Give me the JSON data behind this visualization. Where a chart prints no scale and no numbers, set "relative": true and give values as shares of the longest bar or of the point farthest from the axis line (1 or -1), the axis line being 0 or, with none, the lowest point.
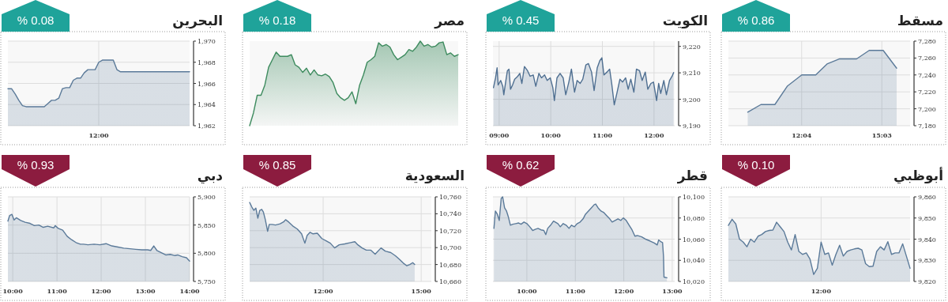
{
  "chart_data": [
    {
      "type": "area",
      "title": "مسقط",
      "annotations": [
        "% 0.86"
      ],
      "x": [
        10.06,
        10.55,
        11.07,
        11.54,
        12.07,
        12.59,
        13.01,
        13.48,
        14.11,
        14.58,
        15.1,
        15.6
      ],
      "series": [
        {
          "color": "#5b7a99",
          "values": [
            7196,
            7205,
            7205,
            7227,
            7240,
            7240,
            7253,
            7259,
            7259,
            7269,
            7269,
            7248
          ]
        }
      ],
      "xlim": [
        9.34,
        16.1
      ],
      "ylim": [
        7180,
        7280
      ],
      "xticks": [
        {
          "value": 12.0667,
          "label": "12:04"
        },
        {
          "value": 15.05,
          "label": "15:03"
        }
      ],
      "yticks": [
        {
          "value": 7180,
          "label": "7,180"
        },
        {
          "value": 7200,
          "label": "7,200"
        },
        {
          "value": 7220,
          "label": "7,220"
        },
        {
          "value": 7240,
          "label": "7,240"
        },
        {
          "value": 7260,
          "label": "7,260"
        },
        {
          "value": 7280,
          "label": "7,280"
        }
      ],
      "grid": true
    },
    {
      "type": "area",
      "title": "الكويت",
      "annotations": [
        "% 0.45"
      ],
      "x": [
        8.89,
        8.93,
        8.96,
        8.98,
        9.03,
        9.07,
        9.09,
        9.13,
        9.16,
        9.19,
        9.22,
        9.26,
        9.3,
        9.36,
        9.4,
        9.44,
        9.49,
        9.55,
        9.6,
        9.66,
        9.71,
        9.77,
        9.82,
        9.88,
        9.93,
        9.99,
        10.04,
        10.07,
        10.12,
        10.18,
        10.24,
        10.29,
        10.35,
        10.4,
        10.46,
        10.51,
        10.57,
        10.62,
        10.68,
        10.73,
        10.79,
        10.84,
        10.9,
        10.95,
        10.99,
        11.03,
        11.09,
        11.14,
        11.18,
        11.23,
        11.28,
        11.34,
        11.39,
        11.45,
        11.5,
        11.55,
        11.61,
        11.66,
        11.72,
        11.77,
        11.83,
        11.88,
        11.94,
        11.99,
        12.05,
        12.09,
        12.13,
        12.19,
        12.24,
        12.3,
        12.35,
        12.38
      ],
      "series": [
        {
          "color": "#4f6f91",
          "values": [
            9204.4,
            9208.1,
            9211.9,
            9205.4,
            9207.1,
            9204.9,
            9201.7,
            9207.1,
            9210.8,
            9211.4,
            9203.8,
            9205.4,
            9207.6,
            9208.7,
            9209.8,
            9206.0,
            9212.4,
            9210.8,
            9208.7,
            9209.2,
            9204.9,
            9209.8,
            9208.1,
            9209.2,
            9207.1,
            9208.1,
            9204.4,
            9199.5,
            9208.1,
            9209.8,
            9208.1,
            9201.7,
            9206.5,
            9211.4,
            9202.7,
            9207.1,
            9206.0,
            9207.6,
            9213.0,
            9213.5,
            9210.3,
            9203.3,
            9211.9,
            9214.6,
            9215.7,
            9209.2,
            9210.3,
            9211.4,
            9206.0,
            9197.9,
            9202.2,
            9207.6,
            9206.5,
            9208.1,
            9203.8,
            9207.6,
            9202.7,
            9211.4,
            9210.8,
            9207.1,
            9210.3,
            9203.8,
            9206.0,
            9206.5,
            9199.5,
            9206.0,
            9202.2,
            9207.1,
            9201.7,
            9207.1,
            9208.7,
            9210.1
          ]
        }
      ],
      "xlim": [
        8.88,
        12.4
      ],
      "ylim": [
        9190,
        9222
      ],
      "xticks": [
        {
          "value": 9,
          "label": "09:00"
        },
        {
          "value": 10,
          "label": "10:00"
        },
        {
          "value": 11,
          "label": "11:00"
        },
        {
          "value": 12,
          "label": "12:00"
        }
      ],
      "yticks": [
        {
          "value": 9190,
          "label": "9,190"
        },
        {
          "value": 9200,
          "label": "9,200"
        },
        {
          "value": 9210,
          "label": "9,210"
        },
        {
          "value": 9220,
          "label": "9,220"
        }
      ],
      "grid": true
    },
    {
      "type": "area",
      "title": "مصر",
      "annotations": [
        "% 0.18"
      ],
      "relative": true,
      "categories": [
        null,
        null,
        null,
        null,
        null,
        null,
        null,
        null,
        null,
        null,
        null,
        null,
        null,
        null,
        null,
        null,
        null,
        null,
        null,
        null,
        null,
        null,
        null,
        null,
        null,
        null,
        null,
        null,
        null,
        null,
        null,
        null,
        null,
        null,
        null,
        null,
        null,
        null,
        null,
        null,
        null,
        null,
        null,
        null,
        null,
        null,
        null,
        null,
        null,
        null,
        null,
        null,
        null,
        null,
        null,
        null
      ],
      "series": [
        {
          "color": "#3d8b5e",
          "values": [
            0,
            0.15,
            0.36,
            0.36,
            0.48,
            0.69,
            0.78,
            0.87,
            0.82,
            0.82,
            0.82,
            0.84,
            0.72,
            0.69,
            0.63,
            0.68,
            0.6,
            0.66,
            0.6,
            0.59,
            0.61,
            0.58,
            0.51,
            0.38,
            0.33,
            0.3,
            0.33,
            0.4,
            0.26,
            0.48,
            0.6,
            0.75,
            0.78,
            0.82,
            0.98,
            0.94,
            0.96,
            0.93,
            0.84,
            0.78,
            0.81,
            0.84,
            0.9,
            0.88,
            0.93,
            1,
            0.94,
            0.96,
            0.93,
            0.94,
            0.98,
            0.99,
            0.84,
            0.86,
            0.82,
            0.84
          ]
        }
      ]
    },
    {
      "type": "area",
      "title": "البحرين",
      "annotations": [
        "% 0.08"
      ],
      "categories": [
        null,
        null,
        null,
        null,
        null,
        null,
        null,
        null,
        null,
        null,
        null,
        null,
        null,
        null,
        null,
        null,
        null,
        null,
        null,
        null,
        null,
        null,
        null,
        null,
        null,
        "12:00",
        null,
        null,
        null,
        null,
        null,
        null,
        null,
        null,
        null,
        null,
        null,
        null,
        null,
        null,
        null,
        null,
        null,
        null,
        null,
        null,
        null,
        null,
        null,
        null,
        null
      ],
      "series": [
        {
          "color": "#5b7a99",
          "values": [
            1965.5,
            1965.5,
            1965.0,
            1964.4,
            1963.9,
            1963.8,
            1963.8,
            1963.8,
            1963.8,
            1963.8,
            1963.8,
            1964.1,
            1964.4,
            1964.4,
            1964.6,
            1965.5,
            1965.6,
            1965.6,
            1966.3,
            1966.5,
            1966.5,
            1967.0,
            1967.3,
            1967.3,
            1967.3,
            1968.0,
            1968.2,
            1968.2,
            1968.2,
            1968.2,
            1967.3,
            1967.1,
            1967.1,
            1967.1,
            1967.1,
            1967.1,
            1967.1,
            1967.1,
            1967.1,
            1967.1,
            1967.1,
            1967.1,
            1967.1,
            1967.1,
            1967.1,
            1967.1,
            1967.1,
            1967.1,
            1967.1,
            1967.1,
            1967.1
          ]
        }
      ],
      "ylim": [
        1962,
        1970
      ],
      "yticks": [
        {
          "value": 1962,
          "label": "1,962"
        },
        {
          "value": 1964,
          "label": "1,964"
        },
        {
          "value": 1966,
          "label": "1,966"
        },
        {
          "value": 1968,
          "label": "1,968"
        },
        {
          "value": 1970,
          "label": "1,970"
        }
      ],
      "grid": true
    },
    {
      "type": "area",
      "title": "أبوظبي",
      "annotations": [
        "% 0.10"
      ],
      "categories": [
        null,
        null,
        null,
        null,
        null,
        null,
        null,
        null,
        null,
        null,
        null,
        null,
        null,
        null,
        null,
        null,
        null,
        null,
        null,
        null,
        null,
        null,
        null,
        null,
        null,
        "12:00",
        null,
        null,
        null,
        null,
        null,
        null,
        null,
        null,
        null,
        null,
        null,
        null,
        null,
        null,
        null,
        null,
        null,
        null,
        null,
        null,
        null,
        null,
        null,
        null
      ],
      "series": [
        {
          "color": "#5b7a99",
          "values": [
            9846.5,
            9849.4,
            9847.2,
            9840.0,
            9838.6,
            9836.4,
            9840.0,
            9838.6,
            9841.4,
            9842.2,
            9843.6,
            9844.1,
            9844.3,
            9848.0,
            9845.8,
            9843.6,
            9838.6,
            9834.9,
            9842.2,
            9834.2,
            9832.8,
            9833.5,
            9830.6,
            9823.3,
            9826.2,
            9838.6,
            9832.8,
            9833.5,
            9827.7,
            9832.8,
            9837.1,
            9832.0,
            9834.2,
            9834.9,
            9835.4,
            9835.7,
            9834.9,
            9828.4,
            9827.0,
            9827.2,
            9834.2,
            9836.4,
            9834.9,
            9838.8,
            9832.8,
            9833.5,
            9833.5,
            9837.8,
            9832.0,
            9826.2
          ]
        }
      ],
      "ylim": [
        9820,
        9860
      ],
      "yticks": [
        {
          "value": 9820,
          "label": "9,820"
        },
        {
          "value": 9830,
          "label": "9,830"
        },
        {
          "value": 9840,
          "label": "9,840"
        },
        {
          "value": 9850,
          "label": "9,850"
        },
        {
          "value": 9860,
          "label": "9,860"
        }
      ],
      "grid": true
    },
    {
      "type": "area",
      "title": "قطر",
      "annotations": [
        "% 0.62"
      ],
      "x": [
        9.32,
        9.35,
        9.39,
        9.43,
        9.47,
        9.5,
        9.54,
        9.58,
        9.62,
        9.66,
        9.71,
        9.77,
        9.83,
        9.88,
        9.94,
        10.0,
        10.06,
        10.12,
        10.17,
        10.23,
        10.29,
        10.35,
        10.39,
        10.43,
        10.49,
        10.55,
        10.64,
        10.69,
        10.75,
        10.81,
        10.87,
        10.92,
        10.98,
        11.04,
        11.1,
        11.16,
        11.21,
        11.27,
        11.33,
        11.39,
        11.42,
        11.47,
        11.53,
        11.59,
        11.65,
        11.71,
        11.76,
        11.82,
        11.88,
        11.94,
        11.99,
        12.05,
        12.11,
        12.17,
        12.23,
        12.28,
        12.37,
        12.46,
        12.54,
        12.63,
        12.69,
        12.72,
        12.77,
        12.8,
        12.82,
        12.83,
        12.89
      ],
      "series": [
        {
          "color": "#5b7a99",
          "values": [
            10070.2,
            10086.6,
            10083.6,
            10077.7,
            10098.5,
            10100.0,
            10089.6,
            10086.6,
            10080.7,
            10073.2,
            10074.1,
            10074.7,
            10075.3,
            10074.1,
            10076.2,
            10074.7,
            10071.7,
            10068.2,
            10069.3,
            10070.2,
            10068.8,
            10068.2,
            10064.3,
            10070.2,
            10073.2,
            10077.1,
            10074.7,
            10071.7,
            10074.7,
            10073.2,
            10070.2,
            10073.2,
            10071.7,
            10074.7,
            10076.2,
            10079.2,
            10083.6,
            10086.6,
            10089.6,
            10092.6,
            10093.2,
            10089.6,
            10086.6,
            10085.1,
            10082.1,
            10079.2,
            10076.2,
            10077.7,
            10079.2,
            10077.7,
            10080.1,
            10077.7,
            10073.2,
            10068.8,
            10062.8,
            10063.4,
            10062.2,
            10059.8,
            10058.3,
            10056.3,
            10054.5,
            10059.2,
            10057.4,
            10056.8,
            10043.5,
            10024.1,
            10023.5
          ]
        }
      ],
      "xlim": [
        9.3,
        13.05
      ],
      "ylim": [
        10020,
        10100
      ],
      "xticks": [
        {
          "value": 10,
          "label": "10:00"
        },
        {
          "value": 11,
          "label": "11:00"
        },
        {
          "value": 12,
          "label": "12:00"
        },
        {
          "value": 13,
          "label": "13:00"
        }
      ],
      "yticks": [
        {
          "value": 10020,
          "label": "10,020"
        },
        {
          "value": 10040,
          "label": "10,040"
        },
        {
          "value": 10060,
          "label": "10,060"
        },
        {
          "value": 10080,
          "label": "10,080"
        },
        {
          "value": 10100,
          "label": "10,100"
        }
      ],
      "grid": true
    },
    {
      "type": "area",
      "title": "السعودية",
      "annotations": [
        "% 0.85"
      ],
      "x": [
        9.75,
        9.82,
        9.88,
        9.94,
        10.0,
        10.06,
        10.12,
        10.17,
        10.23,
        10.3,
        10.35,
        10.44,
        10.54,
        10.68,
        10.79,
        10.85,
        10.94,
        11.07,
        11.21,
        11.34,
        11.44,
        11.51,
        11.6,
        11.69,
        11.82,
        11.96,
        12.09,
        12.22,
        12.35,
        12.49,
        12.66,
        12.84,
        12.97,
        13.06,
        13.19,
        13.32,
        13.46,
        13.59,
        13.77,
        13.9,
        14.07,
        14.21,
        14.34,
        14.47,
        14.56,
        14.65,
        14.74,
        14.8
      ],
      "series": [
        {
          "color": "#5b7a99",
          "values": [
            10753.3,
            10747.8,
            10744.1,
            10746.7,
            10734.8,
            10744.1,
            10745.2,
            10742.2,
            10733.0,
            10719.3,
            10727.4,
            10727.4,
            10726.7,
            10728.1,
            10730.4,
            10733.0,
            10730.4,
            10725.6,
            10721.9,
            10716.3,
            10705.2,
            10714.4,
            10718.1,
            10716.3,
            10717.0,
            10710.7,
            10708.1,
            10705.2,
            10699.6,
            10703.3,
            10704.4,
            10705.9,
            10707.0,
            10703.3,
            10699.6,
            10697.0,
            10697.0,
            10692.2,
            10699.6,
            10695.9,
            10694.1,
            10690.4,
            10685.9,
            10681.1,
            10678.5,
            10680.0,
            10682.2,
            10680.0
          ]
        }
      ],
      "xlim": [
        9.75,
        15.31
      ],
      "ylim": [
        10660,
        10760
      ],
      "xticks": [
        {
          "value": 12,
          "label": "12:00"
        },
        {
          "value": 15,
          "label": "15:00"
        }
      ],
      "yticks": [
        {
          "value": 10660,
          "label": "10,660"
        },
        {
          "value": 10680,
          "label": "10,680"
        },
        {
          "value": 10700,
          "label": "10,700"
        },
        {
          "value": 10720,
          "label": "10,720"
        },
        {
          "value": 10740,
          "label": "10,740"
        },
        {
          "value": 10760,
          "label": "10,760"
        }
      ],
      "grid": true
    },
    {
      "type": "area",
      "title": "دبي",
      "annotations": [
        "% 0.93"
      ],
      "x": [
        9.89,
        9.93,
        9.98,
        10.03,
        10.08,
        10.18,
        10.28,
        10.39,
        10.49,
        10.59,
        10.69,
        10.79,
        10.93,
        10.96,
        11.03,
        11.13,
        11.23,
        11.33,
        11.43,
        11.53,
        11.6,
        11.7,
        11.84,
        11.97,
        12.11,
        12.24,
        12.38,
        12.51,
        12.65,
        12.78,
        12.92,
        13.05,
        13.12,
        13.19,
        13.26,
        13.36,
        13.46,
        13.56,
        13.66,
        13.73,
        13.83,
        13.93,
        14.0
      ],
      "series": [
        {
          "color": "#5b7a99",
          "values": [
            5857,
            5867,
            5869,
            5859,
            5863,
            5858,
            5855,
            5853,
            5849,
            5850,
            5846,
            5848,
            5845,
            5849,
            5844,
            5841,
            5830,
            5824,
            5819,
            5816,
            5816,
            5815,
            5816,
            5815,
            5817,
            5813,
            5811,
            5809,
            5808,
            5807,
            5806,
            5806,
            5805,
            5813,
            5805,
            5801,
            5797,
            5798,
            5796,
            5797,
            5794,
            5792,
            5786
          ]
        }
      ],
      "xlim": [
        9.89,
        14.0
      ],
      "ylim": [
        5750,
        5900
      ],
      "xticks": [
        {
          "value": 10,
          "label": "10:00"
        },
        {
          "value": 11,
          "label": "11:00"
        },
        {
          "value": 12,
          "label": "12:00"
        },
        {
          "value": 13,
          "label": "13:00"
        },
        {
          "value": 14,
          "label": "14:00"
        }
      ],
      "yticks": [
        {
          "value": 5750,
          "label": "5,750"
        },
        {
          "value": 5800,
          "label": "5,800"
        },
        {
          "value": 5850,
          "label": "5,850"
        },
        {
          "value": 5900,
          "label": "5,900"
        }
      ],
      "grid": true
    }
  ]
}
